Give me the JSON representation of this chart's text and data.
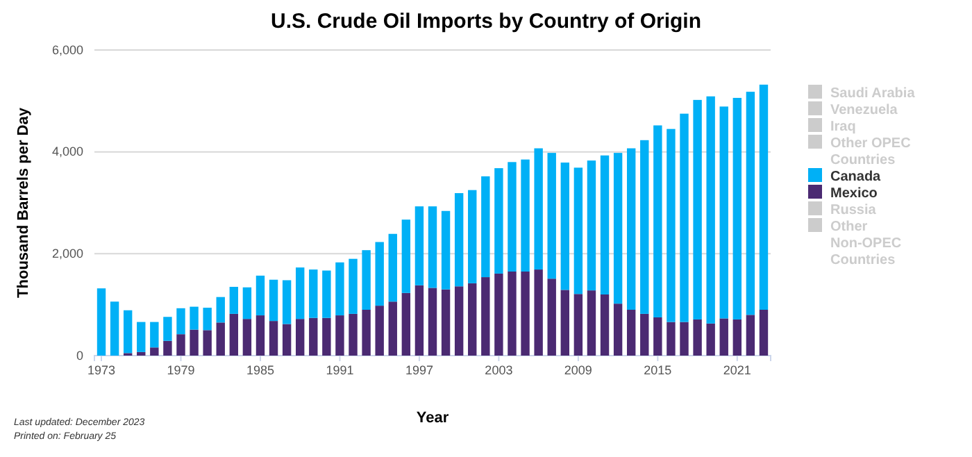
{
  "chart_data": {
    "type": "bar",
    "title": "U.S. Crude Oil Imports by Country of Origin",
    "xlabel": "Year",
    "ylabel": "Thousand Barrels per Day",
    "annotations": [
      "Last updated: December 2023",
      "Printed on: February 25"
    ],
    "categories": [
      "1973",
      null,
      null,
      null,
      null,
      null,
      "1979",
      null,
      null,
      null,
      null,
      null,
      "1985",
      null,
      null,
      null,
      null,
      null,
      "1991",
      null,
      null,
      null,
      null,
      null,
      "1997",
      null,
      null,
      null,
      null,
      null,
      "2003",
      null,
      null,
      null,
      null,
      null,
      "2009",
      null,
      null,
      null,
      null,
      null,
      "2015",
      null,
      null,
      null,
      null,
      null,
      "2021",
      null,
      null
    ],
    "stacked": true,
    "ylim": [
      0,
      6000
    ],
    "yticks": [
      {
        "value": 0,
        "label": "0"
      },
      {
        "value": 2000,
        "label": "2,000"
      },
      {
        "value": 4000,
        "label": "4,000"
      },
      {
        "value": 6000,
        "label": "6,000"
      }
    ],
    "grid": "y",
    "legend": "right",
    "series": [
      {
        "name": "Other Non-OPEC Countries",
        "color": "#cccccc",
        "values": [
          null,
          null,
          null,
          null,
          null,
          null,
          null,
          null,
          null,
          null,
          null,
          null,
          null,
          null,
          null,
          null,
          null,
          null,
          null,
          null,
          null,
          null,
          null,
          null,
          null,
          null,
          null,
          null,
          null,
          null,
          null,
          null,
          null,
          null,
          null,
          null,
          null,
          null,
          null,
          null,
          null,
          null,
          null,
          null,
          null,
          null,
          null,
          null,
          null,
          null,
          null
        ]
      },
      {
        "name": "Russia",
        "color": "#cccccc",
        "values": [
          null,
          null,
          null,
          null,
          null,
          null,
          null,
          null,
          null,
          null,
          null,
          null,
          null,
          null,
          null,
          null,
          null,
          null,
          null,
          null,
          null,
          null,
          null,
          null,
          null,
          null,
          null,
          null,
          null,
          null,
          null,
          null,
          null,
          null,
          null,
          null,
          null,
          null,
          null,
          null,
          null,
          null,
          null,
          null,
          null,
          null,
          null,
          null,
          null,
          null,
          null
        ]
      },
      {
        "name": "Mexico",
        "color": "#4b2a72",
        "values": [
          0,
          0,
          50,
          70,
          160,
          290,
          420,
          510,
          500,
          650,
          820,
          720,
          790,
          680,
          620,
          720,
          740,
          740,
          790,
          820,
          900,
          980,
          1060,
          1230,
          1380,
          1330,
          1300,
          1360,
          1420,
          1540,
          1610,
          1650,
          1650,
          1690,
          1510,
          1290,
          1210,
          1280,
          1200,
          1020,
          900,
          820,
          750,
          660,
          660,
          710,
          630,
          730,
          710,
          800,
          900
        ]
      },
      {
        "name": "Canada",
        "color": "#00b0f6",
        "values": [
          1320,
          1060,
          840,
          590,
          500,
          470,
          510,
          450,
          440,
          500,
          530,
          620,
          780,
          810,
          860,
          1010,
          950,
          930,
          1040,
          1080,
          1170,
          1250,
          1330,
          1440,
          1550,
          1600,
          1540,
          1830,
          1830,
          1980,
          2070,
          2150,
          2200,
          2380,
          2470,
          2500,
          2480,
          2550,
          2730,
          2960,
          3170,
          3410,
          3770,
          3790,
          4090,
          4310,
          4460,
          4160,
          4350,
          4380,
          4420
        ]
      },
      {
        "name": "Other OPEC Countries",
        "color": "#cccccc",
        "values": [
          null,
          null,
          null,
          null,
          null,
          null,
          null,
          null,
          null,
          null,
          null,
          null,
          null,
          null,
          null,
          null,
          null,
          null,
          null,
          null,
          null,
          null,
          null,
          null,
          null,
          null,
          null,
          null,
          null,
          null,
          null,
          null,
          null,
          null,
          null,
          null,
          null,
          null,
          null,
          null,
          null,
          null,
          null,
          null,
          null,
          null,
          null,
          null,
          null,
          null,
          null
        ]
      },
      {
        "name": "Iraq",
        "color": "#cccccc",
        "values": [
          null,
          null,
          null,
          null,
          null,
          null,
          null,
          null,
          null,
          null,
          null,
          null,
          null,
          null,
          null,
          null,
          null,
          null,
          null,
          null,
          null,
          null,
          null,
          null,
          null,
          null,
          null,
          null,
          null,
          null,
          null,
          null,
          null,
          null,
          null,
          null,
          null,
          null,
          null,
          null,
          null,
          null,
          null,
          null,
          null,
          null,
          null,
          null,
          null,
          null,
          null
        ]
      },
      {
        "name": "Venezuela",
        "color": "#cccccc",
        "values": [
          null,
          null,
          null,
          null,
          null,
          null,
          null,
          null,
          null,
          null,
          null,
          null,
          null,
          null,
          null,
          null,
          null,
          null,
          null,
          null,
          null,
          null,
          null,
          null,
          null,
          null,
          null,
          null,
          null,
          null,
          null,
          null,
          null,
          null,
          null,
          null,
          null,
          null,
          null,
          null,
          null,
          null,
          null,
          null,
          null,
          null,
          null,
          null,
          null,
          null,
          null
        ]
      },
      {
        "name": "Saudi Arabia",
        "color": "#cccccc",
        "values": [
          null,
          null,
          null,
          null,
          null,
          null,
          null,
          null,
          null,
          null,
          null,
          null,
          null,
          null,
          null,
          null,
          null,
          null,
          null,
          null,
          null,
          null,
          null,
          null,
          null,
          null,
          null,
          null,
          null,
          null,
          null,
          null,
          null,
          null,
          null,
          null,
          null,
          null,
          null,
          null,
          null,
          null,
          null,
          null,
          null,
          null,
          null,
          null,
          null,
          null,
          null
        ]
      }
    ]
  }
}
